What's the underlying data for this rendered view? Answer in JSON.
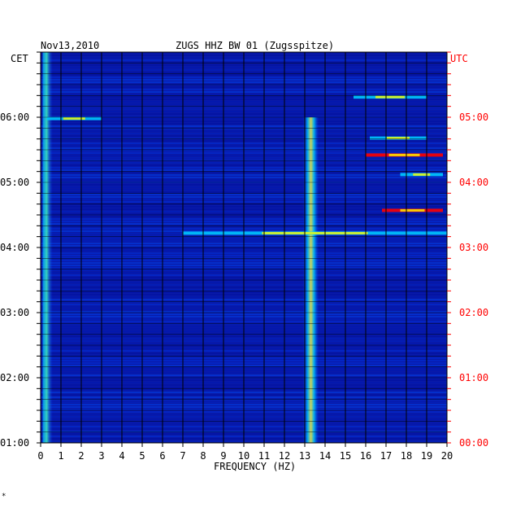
{
  "chart_data": {
    "type": "heatmap",
    "date": "Nov13,2010",
    "title": "ZUGS HHZ BW 01 (Zugsspitze)",
    "left_axis_label": "CET",
    "right_axis_label": "UTC",
    "xlabel": "FREQUENCY (HZ)",
    "xlim": [
      0,
      20
    ],
    "x_ticks": [
      "0",
      "1",
      "2",
      "3",
      "4",
      "5",
      "6",
      "7",
      "8",
      "9",
      "10",
      "11",
      "12",
      "13",
      "14",
      "15",
      "16",
      "17",
      "18",
      "19",
      "20"
    ],
    "y_range_cet_hours": [
      1.0,
      7.0
    ],
    "cet_ticks": [
      {
        "label": "06:00",
        "hour": 6
      },
      {
        "label": "05:00",
        "hour": 5
      },
      {
        "label": "04:00",
        "hour": 4
      },
      {
        "label": "03:00",
        "hour": 3
      },
      {
        "label": "02:00",
        "hour": 2
      },
      {
        "label": "01:00",
        "hour": 1
      }
    ],
    "utc_ticks": [
      {
        "label": "05:00",
        "hour": 6
      },
      {
        "label": "04:00",
        "hour": 5
      },
      {
        "label": "03:00",
        "hour": 4
      },
      {
        "label": "02:00",
        "hour": 3
      },
      {
        "label": "01:00",
        "hour": 2
      },
      {
        "label": "00:00",
        "hour": 1
      }
    ],
    "grid": true,
    "colors": {
      "background": "#0a1aa8",
      "low": "#0000c8",
      "mid": "#00c8ff",
      "high": "#ffff00",
      "peak": "#ff0000",
      "grid": "#000000",
      "utc_text": "#ff0000"
    },
    "features": [
      {
        "name": "band",
        "freq_hz": [
          12.9,
          13.7
        ],
        "hours": [
          1.0,
          6.0
        ],
        "intensity": "high"
      },
      {
        "name": "band",
        "freq_hz": [
          0.1,
          0.6
        ],
        "hours": [
          1.0,
          7.0
        ],
        "intensity": "mid"
      },
      {
        "name": "line",
        "freq_hz": [
          16.2,
          19.0
        ],
        "hour": 5.68,
        "intensity": "mid"
      },
      {
        "name": "line",
        "freq_hz": [
          16.0,
          19.8
        ],
        "hour": 5.42,
        "intensity": "peak"
      },
      {
        "name": "line",
        "freq_hz": [
          17.7,
          19.8
        ],
        "hour": 5.12,
        "intensity": "mid"
      },
      {
        "name": "line",
        "freq_hz": [
          16.8,
          19.8
        ],
        "hour": 4.57,
        "intensity": "peak"
      },
      {
        "name": "line",
        "freq_hz": [
          15.4,
          19.0
        ],
        "hour": 6.31,
        "intensity": "mid"
      },
      {
        "name": "line",
        "freq_hz": [
          0.3,
          3.0
        ],
        "hour": 5.98,
        "intensity": "mid"
      },
      {
        "name": "line",
        "freq_hz": [
          7.0,
          20.0
        ],
        "hour": 4.22,
        "intensity": "mid"
      }
    ]
  },
  "footer_mark": "*"
}
